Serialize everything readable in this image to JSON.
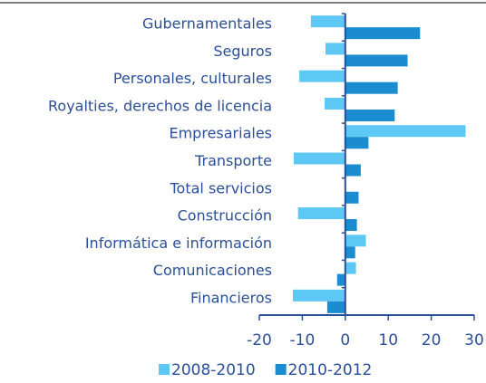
{
  "chart_data": {
    "type": "hbar",
    "categories": [
      "Gubernamentales",
      "Seguros",
      "Personales, culturales",
      "Royalties, derechos de licencia",
      "Empresariales",
      "Transporte",
      "Total servicios",
      "Construcción",
      "Informática e información",
      "Comunicaciones",
      "Financieros"
    ],
    "series": [
      {
        "name": "2008-2010",
        "color": "#5ec8f4",
        "values": [
          -8,
          -4.6,
          -10.7,
          -4.8,
          28,
          -12,
          0,
          -11,
          4.8,
          2.5,
          -12.2
        ]
      },
      {
        "name": "2010-2012",
        "color": "#1a8ccf",
        "values": [
          17.4,
          14.5,
          12.2,
          11.5,
          5.4,
          3.6,
          3.1,
          2.7,
          2.3,
          -1.9,
          -4.2
        ]
      }
    ],
    "xlim": [
      -20,
      30
    ],
    "xticks": [
      -20,
      -10,
      0,
      10,
      20,
      30
    ],
    "legend": "bottom"
  }
}
